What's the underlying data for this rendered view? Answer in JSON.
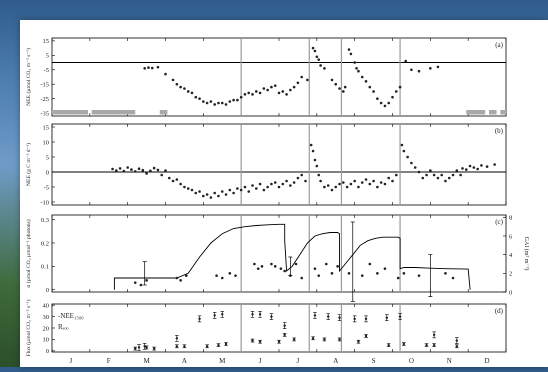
{
  "figure": {
    "months": [
      "J",
      "F",
      "M",
      "A",
      "M",
      "J",
      "J",
      "A",
      "S",
      "O",
      "N",
      "D"
    ]
  },
  "colors": {
    "marker": "#222222",
    "bar": "#a9a9a9",
    "line": "#000000",
    "cut": "#9a9a9a"
  },
  "chart_data": [
    {
      "panel_label": "(a)",
      "type": "scatter",
      "ylabel": "NEE (µmol CO₂ m⁻² s⁻¹)",
      "yticks": [
        15,
        5,
        -5,
        -15,
        -25,
        -35
      ],
      "ylim": [
        -37,
        17
      ],
      "xlim": [
        0,
        12
      ],
      "zero_line": true,
      "month_boundaries": [
        5,
        6.8,
        7.65,
        9.2
      ],
      "points": [
        [
          2.45,
          -4
        ],
        [
          2.55,
          -3.5
        ],
        [
          2.65,
          -3.8
        ],
        [
          2.8,
          -3.2
        ],
        [
          3.0,
          -8
        ],
        [
          3.2,
          -12
        ],
        [
          3.3,
          -15
        ],
        [
          3.4,
          -17
        ],
        [
          3.5,
          -18
        ],
        [
          3.6,
          -20
        ],
        [
          3.7,
          -21
        ],
        [
          3.8,
          -24
        ],
        [
          3.9,
          -25
        ],
        [
          4.0,
          -27
        ],
        [
          4.1,
          -28
        ],
        [
          4.2,
          -27
        ],
        [
          4.3,
          -29
        ],
        [
          4.4,
          -28
        ],
        [
          4.5,
          -28
        ],
        [
          4.6,
          -29
        ],
        [
          4.7,
          -27
        ],
        [
          4.8,
          -26
        ],
        [
          4.9,
          -26
        ],
        [
          5.0,
          -24
        ],
        [
          5.1,
          -22
        ],
        [
          5.2,
          -21
        ],
        [
          5.3,
          -22
        ],
        [
          5.4,
          -20
        ],
        [
          5.5,
          -21
        ],
        [
          5.6,
          -18
        ],
        [
          5.7,
          -19
        ],
        [
          5.8,
          -17
        ],
        [
          5.9,
          -16
        ],
        [
          6.0,
          -21
        ],
        [
          6.1,
          -20
        ],
        [
          6.2,
          -22
        ],
        [
          6.3,
          -19
        ],
        [
          6.4,
          -17
        ],
        [
          6.5,
          -14
        ],
        [
          6.6,
          -10
        ],
        [
          6.75,
          -12
        ],
        [
          6.9,
          10
        ],
        [
          6.95,
          8
        ],
        [
          7.0,
          4
        ],
        [
          7.05,
          2
        ],
        [
          7.1,
          -2
        ],
        [
          7.2,
          -4
        ],
        [
          7.4,
          -12
        ],
        [
          7.5,
          -15
        ],
        [
          7.6,
          -18
        ],
        [
          7.7,
          -20
        ],
        [
          7.75,
          -17
        ],
        [
          7.85,
          9
        ],
        [
          7.9,
          6
        ],
        [
          8.0,
          0
        ],
        [
          8.05,
          -4
        ],
        [
          8.1,
          -6
        ],
        [
          8.2,
          -10
        ],
        [
          8.3,
          -13
        ],
        [
          8.4,
          -17
        ],
        [
          8.5,
          -20
        ],
        [
          8.6,
          -25
        ],
        [
          8.7,
          -28
        ],
        [
          8.8,
          -30
        ],
        [
          8.9,
          -28
        ],
        [
          9.0,
          -24
        ],
        [
          9.1,
          -20
        ],
        [
          9.2,
          -17
        ],
        [
          9.35,
          1
        ],
        [
          9.5,
          -5
        ],
        [
          9.7,
          -6
        ],
        [
          10.0,
          -4
        ],
        [
          10.2,
          -3
        ]
      ],
      "gray_bars": [
        [
          0.0,
          0.95
        ],
        [
          1.05,
          2.2
        ],
        [
          2.85,
          3.05
        ],
        [
          10.95,
          11.45
        ],
        [
          11.55,
          11.75
        ],
        [
          11.85,
          12.0
        ]
      ]
    },
    {
      "panel_label": "(b)",
      "type": "scatter",
      "ylabel": "NEE (g C m⁻² d⁻¹)",
      "yticks": [
        15,
        10,
        5,
        0,
        -5,
        -10
      ],
      "ylim": [
        -11,
        16
      ],
      "xlim": [
        0,
        12
      ],
      "zero_line": true,
      "month_boundaries": [
        5,
        6.8,
        7.65,
        9.2
      ],
      "points": [
        [
          1.6,
          1
        ],
        [
          1.7,
          0.5
        ],
        [
          1.8,
          1.2
        ],
        [
          1.9,
          0.3
        ],
        [
          2.0,
          1.5
        ],
        [
          2.1,
          0.8
        ],
        [
          2.2,
          0.2
        ],
        [
          2.3,
          1.1
        ],
        [
          2.4,
          0.6
        ],
        [
          2.5,
          -0.5
        ],
        [
          2.6,
          0.4
        ],
        [
          2.7,
          1.3
        ],
        [
          2.8,
          0.7
        ],
        [
          2.9,
          -1
        ],
        [
          3.0,
          0.5
        ],
        [
          3.1,
          -2
        ],
        [
          3.2,
          -3
        ],
        [
          3.3,
          -2.5
        ],
        [
          3.4,
          -4
        ],
        [
          3.5,
          -5
        ],
        [
          3.6,
          -5.5
        ],
        [
          3.7,
          -6
        ],
        [
          3.8,
          -7
        ],
        [
          3.9,
          -6.5
        ],
        [
          4.0,
          -8
        ],
        [
          4.1,
          -7.5
        ],
        [
          4.2,
          -8.5
        ],
        [
          4.3,
          -7
        ],
        [
          4.4,
          -8
        ],
        [
          4.5,
          -6.5
        ],
        [
          4.6,
          -7.5
        ],
        [
          4.7,
          -6
        ],
        [
          4.8,
          -7
        ],
        [
          4.9,
          -5.5
        ],
        [
          5.0,
          -6
        ],
        [
          5.1,
          -5
        ],
        [
          5.2,
          -6.5
        ],
        [
          5.3,
          -4.5
        ],
        [
          5.4,
          -5.5
        ],
        [
          5.5,
          -4
        ],
        [
          5.6,
          -6
        ],
        [
          5.7,
          -5
        ],
        [
          5.8,
          -4
        ],
        [
          5.9,
          -3.5
        ],
        [
          6.0,
          -5
        ],
        [
          6.1,
          -4
        ],
        [
          6.2,
          -3
        ],
        [
          6.3,
          -4.5
        ],
        [
          6.4,
          -3.5
        ],
        [
          6.5,
          -2
        ],
        [
          6.6,
          -1
        ],
        [
          6.7,
          -3
        ],
        [
          6.85,
          9
        ],
        [
          6.9,
          7
        ],
        [
          6.95,
          4
        ],
        [
          7.0,
          2
        ],
        [
          7.05,
          -1
        ],
        [
          7.1,
          -3
        ],
        [
          7.2,
          -5
        ],
        [
          7.3,
          -4.5
        ],
        [
          7.4,
          -6
        ],
        [
          7.5,
          -5
        ],
        [
          7.6,
          -4
        ],
        [
          7.7,
          -3.5
        ],
        [
          7.8,
          -5
        ],
        [
          7.9,
          -4
        ],
        [
          8.0,
          -3
        ],
        [
          8.1,
          -5
        ],
        [
          8.2,
          -3.5
        ],
        [
          8.3,
          -2.5
        ],
        [
          8.4,
          -4
        ],
        [
          8.5,
          -3
        ],
        [
          8.6,
          -5
        ],
        [
          8.7,
          -3.5
        ],
        [
          8.8,
          -4
        ],
        [
          8.9,
          -2
        ],
        [
          9.0,
          -3
        ],
        [
          9.1,
          -1
        ],
        [
          9.25,
          9
        ],
        [
          9.3,
          7
        ],
        [
          9.4,
          5
        ],
        [
          9.5,
          3
        ],
        [
          9.6,
          1.5
        ],
        [
          9.7,
          0
        ],
        [
          9.8,
          -2
        ],
        [
          9.9,
          -1
        ],
        [
          10.0,
          0.5
        ],
        [
          10.1,
          -1
        ],
        [
          10.2,
          -2
        ],
        [
          10.3,
          -1
        ],
        [
          10.4,
          -3
        ],
        [
          10.5,
          -2
        ],
        [
          10.6,
          -1
        ],
        [
          10.7,
          0.5
        ],
        [
          10.8,
          -1
        ],
        [
          10.85,
          1.2
        ],
        [
          10.95,
          0.8
        ],
        [
          11.05,
          2
        ],
        [
          11.15,
          1.5
        ],
        [
          11.25,
          1
        ],
        [
          11.35,
          2.2
        ],
        [
          11.5,
          1.8
        ],
        [
          11.7,
          2.5
        ]
      ]
    },
    {
      "panel_label": "(c)",
      "type": "line",
      "ylabel": "α (µmol CO₂ µmol⁻¹ photons)",
      "ylabel_right": "GAI (m² m⁻²)",
      "yticks": [
        0.0,
        0.1,
        0.2,
        0.3
      ],
      "yticks_right": [
        0,
        2,
        4,
        6,
        8
      ],
      "ylim": [
        -0.01,
        0.32
      ],
      "xlim": [
        0,
        12
      ],
      "month_boundaries": [
        5,
        6.8,
        7.65,
        9.2
      ],
      "gai_curve": [
        [
          1.65,
          0
        ],
        [
          1.65,
          0.05
        ],
        [
          3.3,
          0.05
        ],
        [
          3.6,
          0.07
        ],
        [
          3.9,
          0.14
        ],
        [
          4.2,
          0.2
        ],
        [
          4.5,
          0.24
        ],
        [
          4.8,
          0.262
        ],
        [
          5.1,
          0.27
        ],
        [
          5.4,
          0.275
        ],
        [
          5.7,
          0.278
        ],
        [
          6.0,
          0.28
        ],
        [
          6.15,
          0.28
        ],
        [
          6.15,
          0.21
        ],
        [
          6.2,
          0.08
        ],
        [
          6.35,
          0.1
        ],
        [
          6.55,
          0.15
        ],
        [
          6.75,
          0.2
        ],
        [
          6.95,
          0.23
        ],
        [
          7.15,
          0.24
        ],
        [
          7.35,
          0.245
        ],
        [
          7.55,
          0.245
        ],
        [
          7.6,
          0.24
        ],
        [
          7.6,
          0.08
        ],
        [
          7.75,
          0.11
        ],
        [
          7.95,
          0.15
        ],
        [
          8.15,
          0.19
        ],
        [
          8.35,
          0.21
        ],
        [
          8.55,
          0.22
        ],
        [
          8.75,
          0.225
        ],
        [
          9.15,
          0.225
        ],
        [
          9.2,
          0.22
        ],
        [
          9.2,
          0.09
        ],
        [
          9.3,
          0.095
        ],
        [
          9.6,
          0.095
        ],
        [
          10.0,
          0.092
        ],
        [
          10.4,
          0.09
        ],
        [
          11.0,
          0.088
        ],
        [
          11.05,
          0.0
        ]
      ],
      "alpha_points": [
        [
          2.2,
          0.03
        ],
        [
          2.35,
          0.02
        ],
        [
          2.5,
          0.04
        ],
        [
          3.3,
          0.05
        ],
        [
          3.4,
          0.04
        ],
        [
          3.55,
          0.06
        ],
        [
          4.35,
          0.06
        ],
        [
          4.5,
          0.05
        ],
        [
          4.7,
          0.07
        ],
        [
          4.85,
          0.06
        ],
        [
          5.35,
          0.11
        ],
        [
          5.45,
          0.09
        ],
        [
          5.55,
          0.1
        ],
        [
          5.8,
          0.11
        ],
        [
          5.9,
          0.1
        ],
        [
          6.05,
          0.09
        ],
        [
          6.15,
          0.08
        ],
        [
          6.3,
          0.06
        ],
        [
          6.45,
          0.11
        ],
        [
          6.6,
          0.05
        ],
        [
          6.95,
          0.09
        ],
        [
          7.05,
          0.06
        ],
        [
          7.25,
          0.11
        ],
        [
          7.4,
          0.07
        ],
        [
          7.55,
          0.1
        ],
        [
          7.85,
          0.07
        ],
        [
          8.2,
          0.06
        ],
        [
          8.4,
          0.11
        ],
        [
          8.6,
          0.07
        ],
        [
          8.8,
          0.09
        ],
        [
          9.15,
          0.05
        ],
        [
          9.3,
          0.07
        ],
        [
          9.7,
          0.06
        ],
        [
          10.4,
          0.07
        ],
        [
          10.6,
          0.05
        ]
      ],
      "alpha_errbars": [
        [
          2.45,
          0.07,
          0.05
        ],
        [
          6.3,
          0.1,
          0.04
        ],
        [
          7.95,
          0.12,
          0.17
        ],
        [
          10.0,
          0.06,
          0.09
        ]
      ]
    },
    {
      "panel_label": "(d)",
      "type": "scatter",
      "ylabel": "Flux (µmol CO₂ m⁻² s⁻¹)",
      "yticks": [
        0,
        10,
        20,
        30,
        40
      ],
      "ylim": [
        -1,
        41
      ],
      "xlim": [
        0,
        12
      ],
      "month_boundaries": [
        5,
        6.8,
        7.65,
        9.2
      ],
      "legend": [
        "-NEE₁₅₀₀",
        "Rₑₒₒ"
      ],
      "nee1500": [
        [
          2.3,
          3
        ],
        [
          2.45,
          4
        ],
        [
          3.3,
          11
        ],
        [
          3.9,
          28
        ],
        [
          4.3,
          31
        ],
        [
          4.5,
          32
        ],
        [
          5.3,
          32
        ],
        [
          5.5,
          32
        ],
        [
          5.8,
          30
        ],
        [
          6.15,
          22
        ],
        [
          6.95,
          31
        ],
        [
          7.3,
          30
        ],
        [
          7.6,
          29
        ],
        [
          8.0,
          28
        ],
        [
          8.3,
          28
        ],
        [
          8.85,
          29
        ],
        [
          9.2,
          30
        ],
        [
          10.1,
          14
        ],
        [
          10.7,
          9
        ]
      ],
      "reco": [
        [
          2.2,
          2
        ],
        [
          2.5,
          3
        ],
        [
          2.7,
          2
        ],
        [
          3.3,
          4
        ],
        [
          3.5,
          4
        ],
        [
          4.1,
          4
        ],
        [
          4.4,
          5
        ],
        [
          4.6,
          6
        ],
        [
          5.3,
          9
        ],
        [
          5.5,
          8
        ],
        [
          6.0,
          8
        ],
        [
          6.15,
          14
        ],
        [
          6.4,
          10
        ],
        [
          6.9,
          11
        ],
        [
          7.2,
          10
        ],
        [
          7.6,
          10
        ],
        [
          8.1,
          8
        ],
        [
          8.3,
          13
        ],
        [
          8.9,
          5
        ],
        [
          9.3,
          6
        ],
        [
          9.9,
          5
        ],
        [
          10.1,
          5
        ],
        [
          10.7,
          4
        ]
      ]
    }
  ]
}
